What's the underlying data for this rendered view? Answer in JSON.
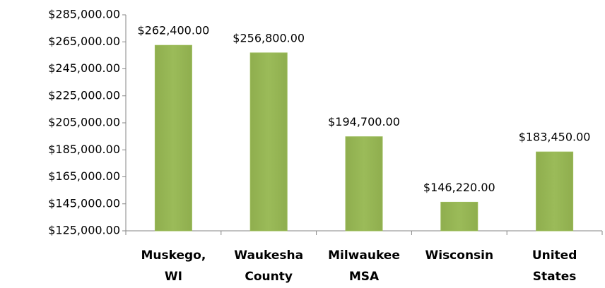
{
  "chart_data": {
    "type": "bar",
    "categories": [
      "Muskego, WI",
      "Waukesha County",
      "Milwaukee MSA",
      "Wisconsin",
      "United States"
    ],
    "values": [
      262400,
      256800,
      194700,
      146220,
      183450
    ],
    "value_labels": [
      "$262,400.00",
      "$256,800.00",
      "$194,700.00",
      "$146,220.00",
      "$183,450.00"
    ],
    "color": "#9bbb59",
    "ylim": [
      125000,
      285000
    ],
    "yticks": [
      {
        "value": 125000,
        "label": "$125,000.00"
      },
      {
        "value": 145000,
        "label": "$145,000.00"
      },
      {
        "value": 165000,
        "label": "$165,000.00"
      },
      {
        "value": 185000,
        "label": "$185,000.00"
      },
      {
        "value": 205000,
        "label": "$205,000.00"
      },
      {
        "value": 225000,
        "label": "$225,000.00"
      },
      {
        "value": 245000,
        "label": "$245,000.00"
      },
      {
        "value": 265000,
        "label": "$265,000.00"
      },
      {
        "value": 285000,
        "label": "$285,000.00"
      }
    ],
    "grid": false
  }
}
